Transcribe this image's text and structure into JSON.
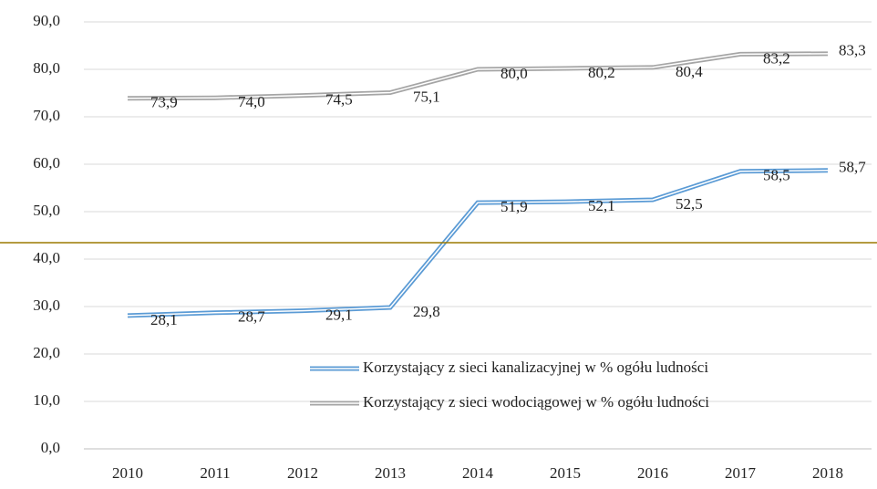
{
  "chart_data": {
    "type": "line",
    "categories": [
      "2010",
      "2011",
      "2012",
      "2013",
      "2014",
      "2015",
      "2016",
      "2017",
      "2018"
    ],
    "series": [
      {
        "name": "Korzystający z sieci kanalizacyjnej w % ogółu ludności",
        "color": "#5b9bd5",
        "values": [
          28.1,
          28.7,
          29.1,
          29.8,
          51.9,
          52.1,
          52.5,
          58.5,
          58.7
        ],
        "value_labels": [
          "28,1",
          "28,7",
          "29,1",
          "29,8",
          "51,9",
          "52,1",
          "52,5",
          "58,5",
          "58,7"
        ]
      },
      {
        "name": "Korzystający z sieci wodociągowej w % ogółu ludności",
        "color": "#a5a5a5",
        "values": [
          73.9,
          74.0,
          74.5,
          75.1,
          80.0,
          80.2,
          80.4,
          83.2,
          83.3
        ],
        "value_labels": [
          "73,9",
          "74,0",
          "74,5",
          "75,1",
          "80,0",
          "80,2",
          "80,4",
          "83,2",
          "83,3"
        ]
      }
    ],
    "ylim": [
      0,
      90
    ],
    "yticks": [
      {
        "value": 0,
        "label": "0,0"
      },
      {
        "value": 10,
        "label": "10,0"
      },
      {
        "value": 20,
        "label": "20,0"
      },
      {
        "value": 30,
        "label": "30,0"
      },
      {
        "value": 40,
        "label": "40,0"
      },
      {
        "value": 50,
        "label": "50,0"
      },
      {
        "value": 60,
        "label": "60,0"
      },
      {
        "value": 70,
        "label": "70,0"
      },
      {
        "value": 80,
        "label": "80,0"
      },
      {
        "value": 90,
        "label": "90,0"
      }
    ],
    "grid": true,
    "legend": "lower right"
  }
}
